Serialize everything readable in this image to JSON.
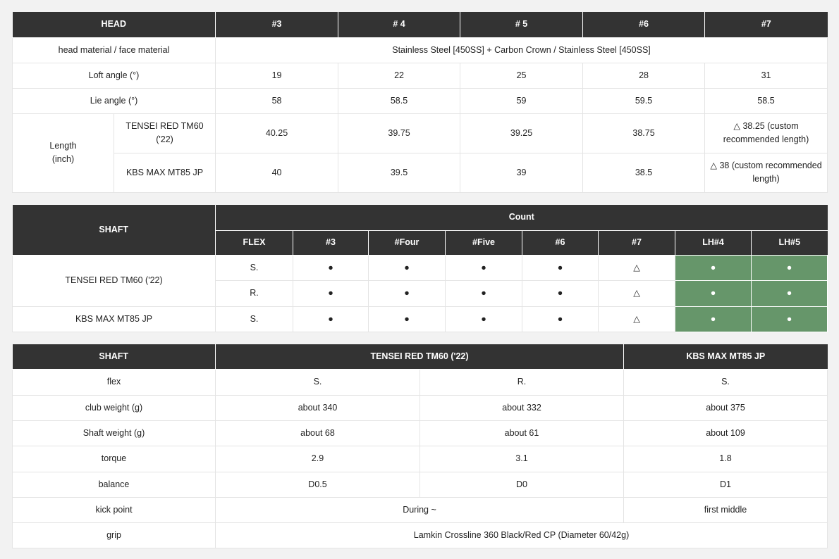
{
  "head_table": {
    "header": [
      "HEAD",
      "#3",
      "# 4",
      "# 5",
      "#6",
      "#7"
    ],
    "material_label": "head material / face material",
    "material_value": "Stainless Steel [450SS] + Carbon Crown / Stainless Steel [450SS]",
    "loft": {
      "label": "Loft angle (°)",
      "values": [
        "19",
        "22",
        "25",
        "28",
        "31"
      ]
    },
    "lie": {
      "label": "Lie angle (°)",
      "values": [
        "58",
        "58.5",
        "59",
        "59.5",
        "58.5"
      ]
    },
    "length_label": "Length (inch)",
    "length_rows": [
      {
        "shaft": "TENSEI RED TM60 ('22)",
        "values": [
          "40.25",
          "39.75",
          "39.25",
          "38.75",
          "△ 38.25 (custom recommended length)"
        ]
      },
      {
        "shaft": "KBS MAX MT85 JP",
        "values": [
          "40",
          "39.5",
          "39",
          "38.5",
          "△ 38 (custom recommended length)"
        ]
      }
    ]
  },
  "count_table": {
    "shaft_label": "SHAFT",
    "count_label": "Count",
    "columns": [
      "FLEX",
      "#3",
      "#Four",
      "#Five",
      "#6",
      "#7",
      "LH#4",
      "LH#5"
    ],
    "accent_color": "#66966a",
    "rows": [
      {
        "shaft": "TENSEI RED TM60 ('22)",
        "flex": "S.",
        "marks": [
          "●",
          "●",
          "●",
          "●",
          "△",
          "●",
          "●"
        ]
      },
      {
        "flex": "R.",
        "marks": [
          "●",
          "●",
          "●",
          "●",
          "△",
          "●",
          "●"
        ]
      },
      {
        "shaft": "KBS MAX MT85 JP",
        "flex": "S.",
        "marks": [
          "●",
          "●",
          "●",
          "●",
          "△",
          "●",
          "●"
        ]
      }
    ]
  },
  "shaft_table": {
    "header": [
      "SHAFT",
      "TENSEI RED TM60 ('22)",
      "KBS MAX MT85 JP"
    ],
    "flex": {
      "label": "flex",
      "values": [
        "S.",
        "R.",
        "S."
      ]
    },
    "club_weight": {
      "label": "club weight (g)",
      "values": [
        "about 340",
        "about 332",
        "about 375"
      ]
    },
    "shaft_weight": {
      "label": "Shaft weight (g)",
      "values": [
        "about 68",
        "about 61",
        "about 109"
      ]
    },
    "torque": {
      "label": "torque",
      "values": [
        "2.9",
        "3.1",
        "1.8"
      ]
    },
    "balance": {
      "label": "balance",
      "values": [
        "D0.5",
        "D0",
        "D1"
      ]
    },
    "kick_point": {
      "label": "kick point",
      "values": [
        "During ~",
        "first middle"
      ]
    },
    "grip": {
      "label": "grip",
      "value": "Lamkin Crossline 360 Black/Red CP (Diameter 60/42g)"
    }
  }
}
